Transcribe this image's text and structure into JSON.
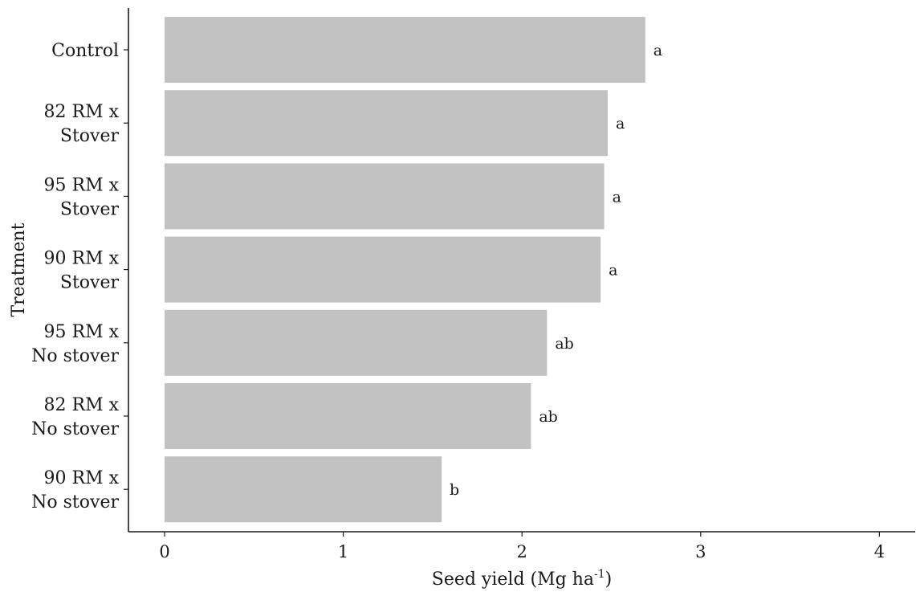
{
  "chart_data": {
    "type": "bar",
    "orientation": "horizontal",
    "xlabel": "Seed yield (Mg ha",
    "xlabel_superscript": "-1",
    "xlabel_suffix": ")",
    "ylabel": "Treatment",
    "xlim": [
      0,
      4
    ],
    "xticks": [
      "0",
      "1",
      "2",
      "3",
      "4"
    ],
    "bar_color": "#c2c2c2",
    "grid": false,
    "bars": [
      {
        "label_lines": [
          "Control"
        ],
        "value": 2.69,
        "letter": "a"
      },
      {
        "label_lines": [
          "82 RM x",
          "Stover"
        ],
        "value": 2.48,
        "letter": "a"
      },
      {
        "label_lines": [
          "95 RM x",
          "Stover"
        ],
        "value": 2.46,
        "letter": "a"
      },
      {
        "label_lines": [
          "90 RM x",
          "Stover"
        ],
        "value": 2.44,
        "letter": "a"
      },
      {
        "label_lines": [
          "95 RM x",
          "No stover"
        ],
        "value": 2.14,
        "letter": "ab"
      },
      {
        "label_lines": [
          "82 RM x",
          "No stover"
        ],
        "value": 2.05,
        "letter": "ab"
      },
      {
        "label_lines": [
          "90 RM x",
          "No stover"
        ],
        "value": 1.55,
        "letter": "b"
      }
    ]
  }
}
